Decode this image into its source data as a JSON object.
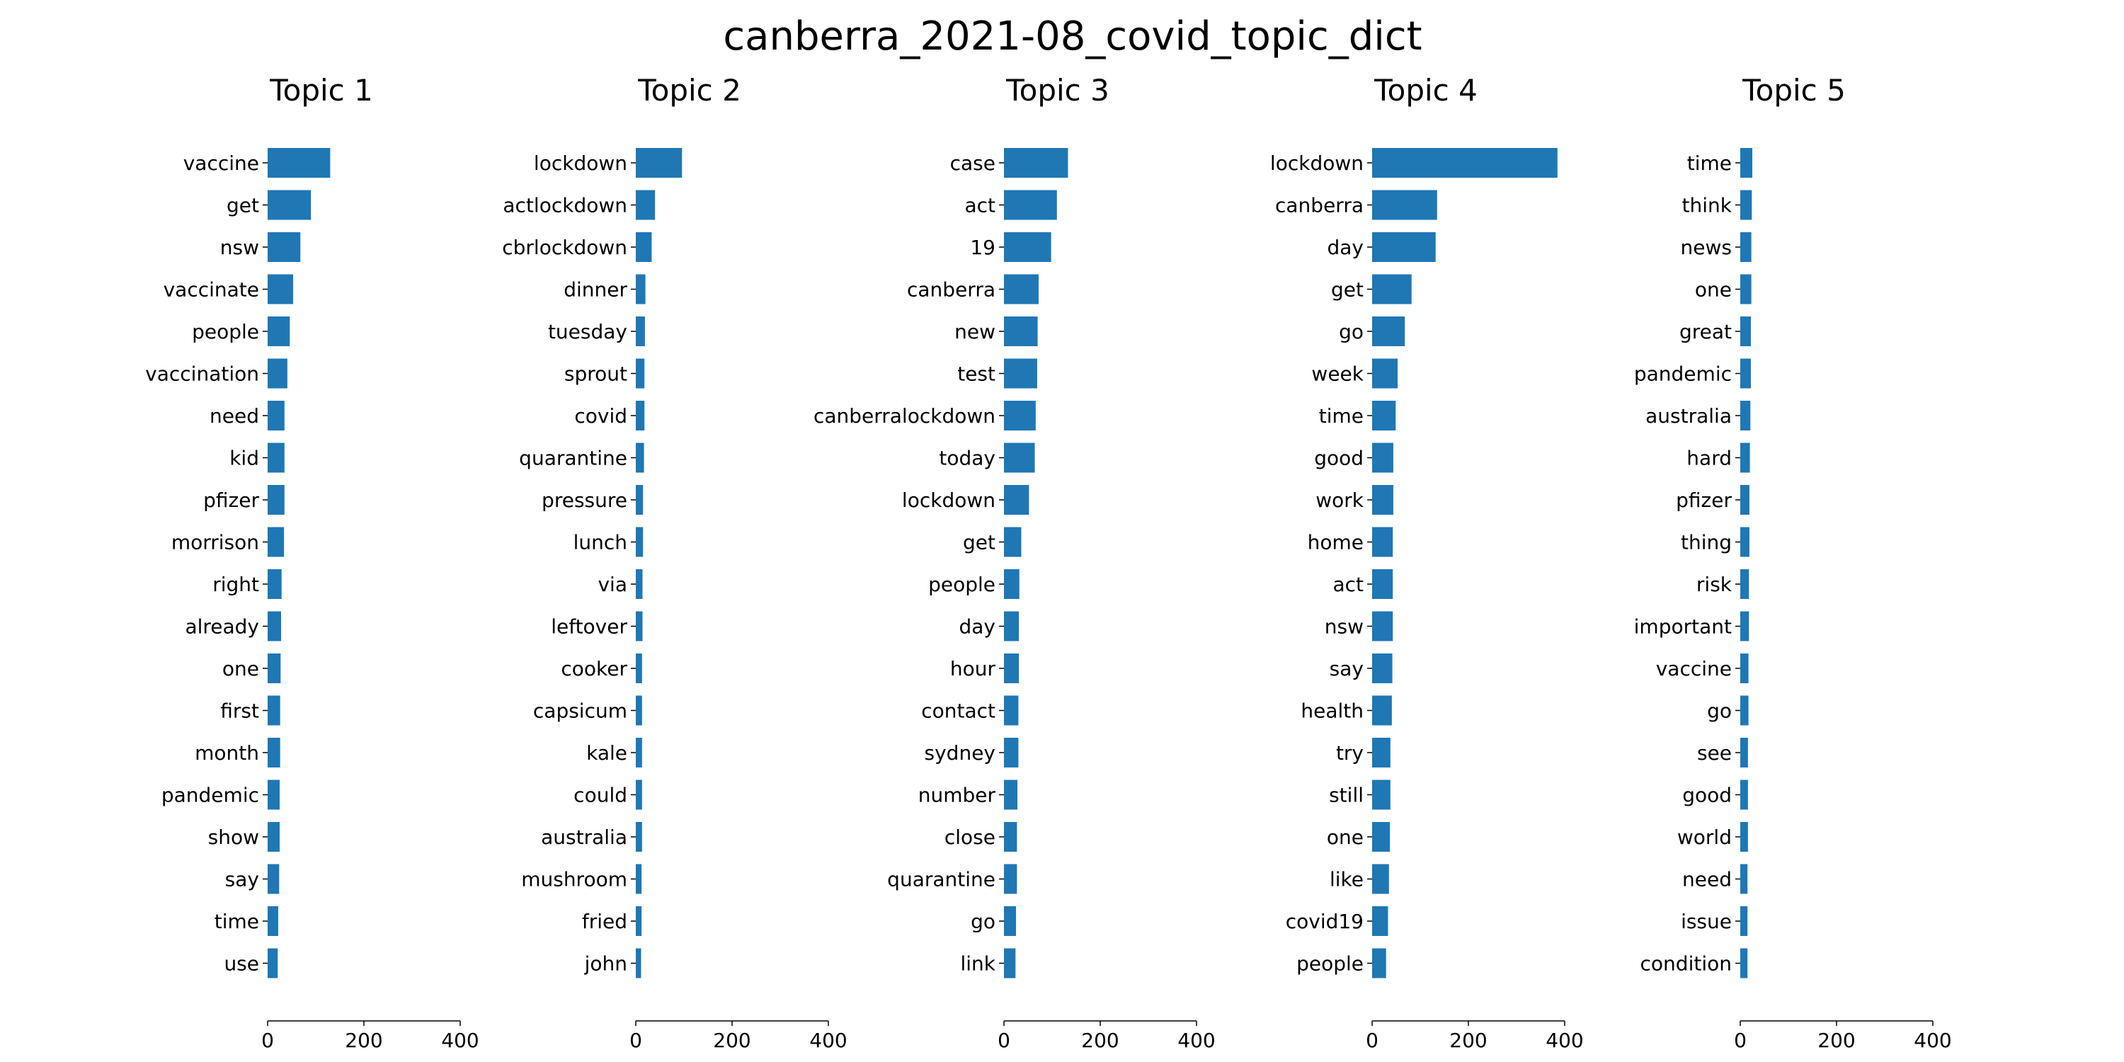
{
  "chart_data": {
    "type": "bar",
    "title": "canberra_2021-08_covid_topic_dict",
    "orientation": "horizontal",
    "xlim": [
      0,
      400
    ],
    "xticks": [
      "0",
      "200",
      "400"
    ],
    "bar_color": "#1f77b4",
    "grid": false,
    "legend": "none",
    "panels": [
      {
        "title": "Topic 1",
        "categories": [
          "vaccine",
          "get",
          "nsw",
          "vaccinate",
          "people",
          "vaccination",
          "need",
          "kid",
          "pfizer",
          "morrison",
          "right",
          "already",
          "one",
          "first",
          "month",
          "pandemic",
          "show",
          "say",
          "time",
          "use"
        ],
        "values": [
          130,
          90,
          68,
          53,
          46,
          41,
          35,
          35,
          35,
          34,
          29,
          28,
          27,
          26,
          26,
          25,
          25,
          24,
          22,
          21
        ]
      },
      {
        "title": "Topic 2",
        "categories": [
          "lockdown",
          "actlockdown",
          "cbrlockdown",
          "dinner",
          "tuesday",
          "sprout",
          "covid",
          "quarantine",
          "pressure",
          "lunch",
          "via",
          "leftover",
          "cooker",
          "capsicum",
          "kale",
          "could",
          "australia",
          "mushroom",
          "fried",
          "john"
        ],
        "values": [
          96,
          40,
          33,
          20,
          19,
          18,
          18,
          17,
          15,
          15,
          14,
          14,
          13,
          13,
          13,
          13,
          13,
          12,
          12,
          11
        ]
      },
      {
        "title": "Topic 3",
        "categories": [
          "case",
          "act",
          "19",
          "canberra",
          "new",
          "test",
          "canberralockdown",
          "today",
          "lockdown",
          "get",
          "people",
          "day",
          "hour",
          "contact",
          "sydney",
          "number",
          "close",
          "quarantine",
          "go",
          "link"
        ],
        "values": [
          133,
          110,
          98,
          72,
          70,
          69,
          66,
          64,
          52,
          36,
          32,
          31,
          31,
          30,
          30,
          28,
          27,
          27,
          25,
          24
        ]
      },
      {
        "title": "Topic 4",
        "categories": [
          "lockdown",
          "canberra",
          "day",
          "get",
          "go",
          "week",
          "time",
          "good",
          "work",
          "home",
          "act",
          "nsw",
          "say",
          "health",
          "try",
          "still",
          "one",
          "like",
          "covid19",
          "people"
        ],
        "values": [
          385,
          135,
          132,
          82,
          68,
          53,
          49,
          44,
          44,
          43,
          43,
          43,
          42,
          41,
          38,
          38,
          37,
          35,
          33,
          29
        ]
      },
      {
        "title": "Topic 5",
        "categories": [
          "time",
          "think",
          "news",
          "one",
          "great",
          "pandemic",
          "australia",
          "hard",
          "pfizer",
          "thing",
          "risk",
          "important",
          "vaccine",
          "go",
          "see",
          "good",
          "world",
          "need",
          "issue",
          "condition"
        ],
        "values": [
          25,
          24,
          23,
          23,
          22,
          22,
          21,
          20,
          19,
          19,
          18,
          18,
          17,
          17,
          16,
          16,
          16,
          15,
          15,
          15
        ]
      }
    ]
  }
}
